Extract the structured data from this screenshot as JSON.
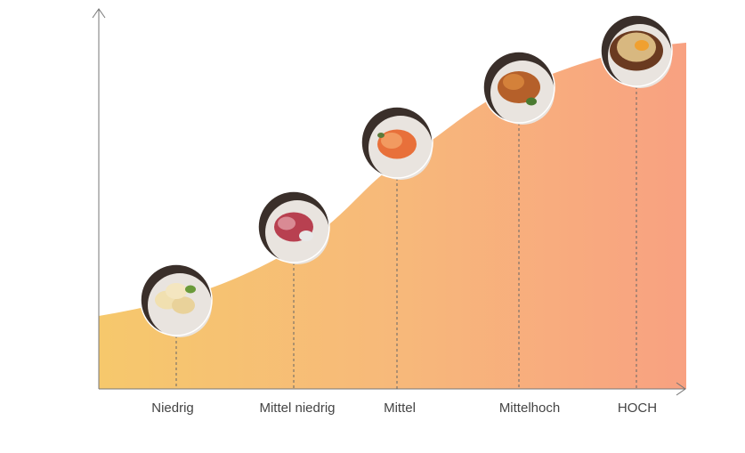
{
  "labels": [
    "Niedrig",
    "Mittel niedrig",
    "Mittel",
    "Mittelhoch",
    "HOCH"
  ]
}
